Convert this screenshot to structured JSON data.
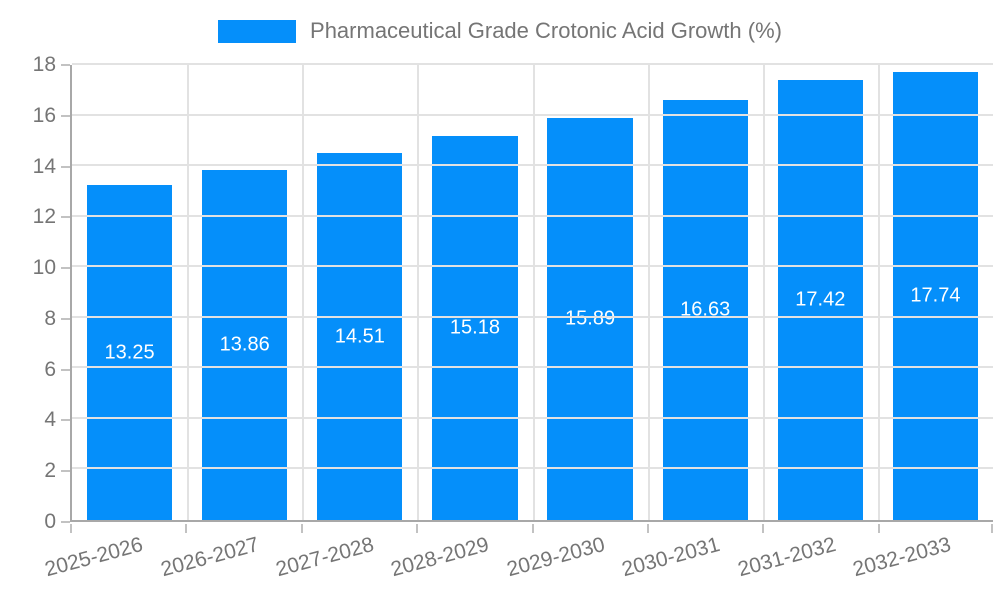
{
  "legend": {
    "label": "Pharmaceutical Grade Crotonic Acid Growth (%)"
  },
  "colors": {
    "bar": "#058FFA",
    "grid": "#e2e2e2",
    "axis": "#a8a8a8",
    "tick": "#c2c2c2",
    "text": "#757575",
    "value_text": "#ffffff",
    "background": "#ffffff"
  },
  "chart_data": {
    "type": "bar",
    "title": "Pharmaceutical Grade Crotonic Acid Growth (%)",
    "categories": [
      "2025-2026",
      "2026-2027",
      "2027-2028",
      "2028-2029",
      "2029-2030",
      "2030-2031",
      "2031-2032",
      "2032-2033"
    ],
    "values": [
      13.25,
      13.86,
      14.51,
      15.18,
      15.89,
      16.63,
      17.42,
      17.74
    ],
    "xlabel": "",
    "ylabel": "",
    "ylim": [
      0,
      18
    ],
    "ytick_step": 2,
    "grid": true,
    "legend_position": "top",
    "value_label_position": "inside-center"
  }
}
